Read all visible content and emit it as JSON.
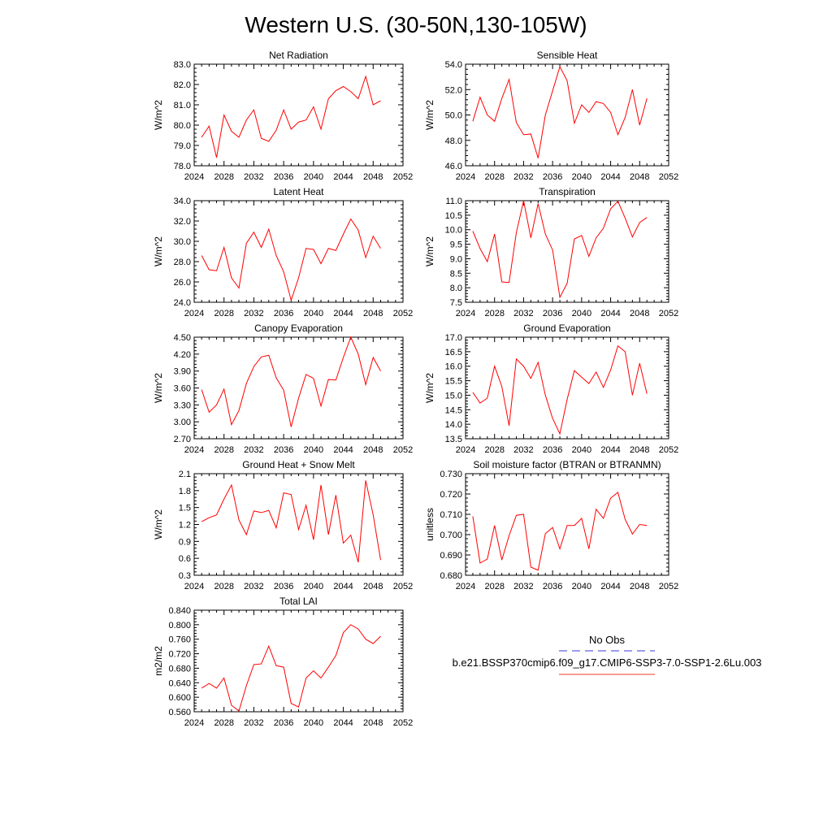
{
  "title": "Western U.S. (30-50N,130-105W)",
  "legend": {
    "items": [
      {
        "label": "No Obs",
        "color": "#3a3ad6",
        "style": "dashed"
      },
      {
        "label": "b.e21.BSSP370cmip6.f09_g17.CMIP6-SSP3-7.0-SSP1-2.6Lu.003",
        "color": "#e8392f",
        "style": "solid"
      }
    ]
  },
  "chart_data": [
    {
      "type": "line",
      "title": "Net Radiation",
      "ylabel": "W/m^2",
      "xlim": [
        2024,
        2052
      ],
      "ylim": [
        78.0,
        83.0
      ],
      "xticks": [
        "2024",
        "2028",
        "2032",
        "2036",
        "2040",
        "2044",
        "2048",
        "2052"
      ],
      "yticks": [
        "78.0",
        "79.0",
        "80.0",
        "81.0",
        "82.0",
        "83.0"
      ],
      "series": [
        {
          "color": "#ff0000",
          "x": [
            2025,
            2026,
            2027,
            2028,
            2029,
            2030,
            2031,
            2032,
            2033,
            2034,
            2035,
            2036,
            2037,
            2038,
            2039,
            2040,
            2041,
            2042,
            2043,
            2044,
            2045,
            2046,
            2047,
            2048,
            2049
          ],
          "values": [
            79.4,
            79.95,
            78.4,
            80.5,
            79.7,
            79.4,
            80.25,
            80.75,
            79.35,
            79.2,
            79.75,
            80.75,
            79.8,
            80.15,
            80.25,
            80.9,
            79.8,
            81.3,
            81.7,
            81.9,
            81.65,
            81.3,
            82.4,
            81.0,
            81.2
          ]
        }
      ]
    },
    {
      "type": "line",
      "title": "Sensible Heat",
      "ylabel": "W/m^2",
      "xlim": [
        2024,
        2052
      ],
      "ylim": [
        46.0,
        54.0
      ],
      "xticks": [
        "2024",
        "2028",
        "2032",
        "2036",
        "2040",
        "2044",
        "2048",
        "2052"
      ],
      "yticks": [
        "46.0",
        "48.0",
        "50.0",
        "52.0",
        "54.0"
      ],
      "series": [
        {
          "color": "#ff0000",
          "x": [
            2025,
            2026,
            2027,
            2028,
            2029,
            2030,
            2031,
            2032,
            2033,
            2034,
            2035,
            2036,
            2037,
            2038,
            2039,
            2040,
            2041,
            2042,
            2043,
            2044,
            2045,
            2046,
            2047,
            2048,
            2049
          ],
          "values": [
            49.5,
            51.4,
            50.0,
            49.5,
            51.3,
            52.8,
            49.4,
            48.45,
            48.5,
            46.6,
            50.0,
            51.9,
            53.8,
            52.7,
            49.35,
            50.8,
            50.2,
            51.05,
            50.9,
            50.2,
            48.45,
            49.8,
            52.0,
            49.2,
            51.3
          ]
        }
      ]
    },
    {
      "type": "line",
      "title": "Latent Heat",
      "ylabel": "W/m^2",
      "xlim": [
        2024,
        2052
      ],
      "ylim": [
        24.0,
        34.0
      ],
      "xticks": [
        "2024",
        "2028",
        "2032",
        "2036",
        "2040",
        "2044",
        "2048",
        "2052"
      ],
      "yticks": [
        "24.0",
        "26.0",
        "28.0",
        "30.0",
        "32.0",
        "34.0"
      ],
      "series": [
        {
          "color": "#ff0000",
          "x": [
            2025,
            2026,
            2027,
            2028,
            2029,
            2030,
            2031,
            2032,
            2033,
            2034,
            2035,
            2036,
            2037,
            2038,
            2039,
            2040,
            2041,
            2042,
            2043,
            2044,
            2045,
            2046,
            2047,
            2048,
            2049
          ],
          "values": [
            28.6,
            27.2,
            27.1,
            29.4,
            26.4,
            25.4,
            29.8,
            30.9,
            29.4,
            31.2,
            28.6,
            27.0,
            24.2,
            26.4,
            29.3,
            29.2,
            27.8,
            29.3,
            29.1,
            30.7,
            32.2,
            31.1,
            28.4,
            30.5,
            29.3
          ]
        }
      ]
    },
    {
      "type": "line",
      "title": "Transpiration",
      "ylabel": "W/m^2",
      "xlim": [
        2024,
        2052
      ],
      "ylim": [
        7.5,
        11.0
      ],
      "xticks": [
        "2024",
        "2028",
        "2032",
        "2036",
        "2040",
        "2044",
        "2048",
        "2052"
      ],
      "yticks": [
        "7.5",
        "8.0",
        "8.5",
        "9.0",
        "9.5",
        "10.0",
        "10.5",
        "11.0"
      ],
      "series": [
        {
          "color": "#ff0000",
          "x": [
            2025,
            2026,
            2027,
            2028,
            2029,
            2030,
            2031,
            2032,
            2033,
            2034,
            2035,
            2036,
            2037,
            2038,
            2039,
            2040,
            2041,
            2042,
            2043,
            2044,
            2045,
            2046,
            2047,
            2048,
            2049
          ],
          "values": [
            9.95,
            9.35,
            8.9,
            9.85,
            8.2,
            8.18,
            9.9,
            11.0,
            9.72,
            10.9,
            9.85,
            9.3,
            7.67,
            8.15,
            9.68,
            9.8,
            9.08,
            9.72,
            10.05,
            10.72,
            10.98,
            10.4,
            9.75,
            10.25,
            10.42
          ]
        }
      ]
    },
    {
      "type": "line",
      "title": "Canopy Evaporation",
      "ylabel": "W/m^2",
      "xlim": [
        2024,
        2052
      ],
      "ylim": [
        2.7,
        4.5
      ],
      "xticks": [
        "2024",
        "2028",
        "2032",
        "2036",
        "2040",
        "2044",
        "2048",
        "2052"
      ],
      "yticks": [
        "2.70",
        "3.00",
        "3.30",
        "3.60",
        "3.90",
        "4.20",
        "4.50"
      ],
      "series": [
        {
          "color": "#ff0000",
          "x": [
            2025,
            2026,
            2027,
            2028,
            2029,
            2030,
            2031,
            2032,
            2033,
            2034,
            2035,
            2036,
            2037,
            2038,
            2039,
            2040,
            2041,
            2042,
            2043,
            2044,
            2045,
            2046,
            2047,
            2048,
            2049
          ],
          "values": [
            3.57,
            3.17,
            3.3,
            3.58,
            2.95,
            3.2,
            3.68,
            3.98,
            4.15,
            4.18,
            3.78,
            3.56,
            2.91,
            3.42,
            3.84,
            3.77,
            3.28,
            3.75,
            3.74,
            4.14,
            4.5,
            4.2,
            3.66,
            4.14,
            3.9
          ]
        }
      ]
    },
    {
      "type": "line",
      "title": "Ground Evaporation",
      "ylabel": "W/m^2",
      "xlim": [
        2024,
        2052
      ],
      "ylim": [
        13.5,
        17.0
      ],
      "xticks": [
        "2024",
        "2028",
        "2032",
        "2036",
        "2040",
        "2044",
        "2048",
        "2052"
      ],
      "yticks": [
        "13.5",
        "14.0",
        "14.5",
        "15.0",
        "15.5",
        "16.0",
        "16.5",
        "17.0"
      ],
      "series": [
        {
          "color": "#ff0000",
          "x": [
            2025,
            2026,
            2027,
            2028,
            2029,
            2030,
            2031,
            2032,
            2033,
            2034,
            2035,
            2036,
            2037,
            2038,
            2039,
            2040,
            2041,
            2042,
            2043,
            2044,
            2045,
            2046,
            2047,
            2048,
            2049
          ],
          "values": [
            15.1,
            14.73,
            14.9,
            16.0,
            15.3,
            13.95,
            16.25,
            16.0,
            15.58,
            16.13,
            15.0,
            14.2,
            13.67,
            14.85,
            15.85,
            15.62,
            15.4,
            15.8,
            15.27,
            15.87,
            16.7,
            16.5,
            15.0,
            16.1,
            15.05
          ]
        }
      ]
    },
    {
      "type": "line",
      "title": "Ground Heat + Snow Melt",
      "ylabel": "W/m^2",
      "xlim": [
        2024,
        2052
      ],
      "ylim": [
        0.3,
        2.1
      ],
      "xticks": [
        "2024",
        "2028",
        "2032",
        "2036",
        "2040",
        "2044",
        "2048",
        "2052"
      ],
      "yticks": [
        "0.3",
        "0.6",
        "0.9",
        "1.2",
        "1.5",
        "1.8",
        "2.1"
      ],
      "series": [
        {
          "color": "#ff0000",
          "x": [
            2025,
            2026,
            2027,
            2028,
            2029,
            2030,
            2031,
            2032,
            2033,
            2034,
            2035,
            2036,
            2037,
            2038,
            2039,
            2040,
            2041,
            2042,
            2043,
            2044,
            2045,
            2046,
            2047,
            2048,
            2049
          ],
          "values": [
            1.25,
            1.32,
            1.37,
            1.65,
            1.9,
            1.28,
            1.02,
            1.44,
            1.41,
            1.45,
            1.14,
            1.76,
            1.73,
            1.11,
            1.54,
            0.93,
            1.9,
            1.02,
            1.72,
            0.87,
            1.01,
            0.53,
            1.98,
            1.37,
            0.57
          ]
        }
      ]
    },
    {
      "type": "line",
      "title": "Soil moisture factor (BTRAN or BTRANMN)",
      "ylabel": "unitless",
      "xlim": [
        2024,
        2052
      ],
      "ylim": [
        0.68,
        0.73
      ],
      "xticks": [
        "2024",
        "2028",
        "2032",
        "2036",
        "2040",
        "2044",
        "2048",
        "2052"
      ],
      "yticks": [
        "0.680",
        "0.690",
        "0.700",
        "0.710",
        "0.720",
        "0.730"
      ],
      "series": [
        {
          "color": "#ff0000",
          "x": [
            2025,
            2026,
            2027,
            2028,
            2029,
            2030,
            2031,
            2032,
            2033,
            2034,
            2035,
            2036,
            2037,
            2038,
            2039,
            2040,
            2041,
            2042,
            2043,
            2044,
            2045,
            2046,
            2047,
            2048,
            2049
          ],
          "values": [
            0.709,
            0.686,
            0.688,
            0.7045,
            0.6875,
            0.6995,
            0.7095,
            0.71,
            0.684,
            0.6825,
            0.7005,
            0.7035,
            0.693,
            0.7045,
            0.7045,
            0.708,
            0.693,
            0.7125,
            0.708,
            0.718,
            0.7208,
            0.7075,
            0.7003,
            0.705,
            0.7045
          ]
        }
      ]
    },
    {
      "type": "line",
      "title": "Total LAI",
      "ylabel": "m2/m2",
      "xlim": [
        2024,
        2052
      ],
      "ylim": [
        0.56,
        0.84
      ],
      "xticks": [
        "2024",
        "2028",
        "2032",
        "2036",
        "2040",
        "2044",
        "2048",
        "2052"
      ],
      "yticks": [
        "0.560",
        "0.600",
        "0.640",
        "0.680",
        "0.720",
        "0.760",
        "0.800",
        "0.840"
      ],
      "series": [
        {
          "color": "#ff0000",
          "x": [
            2025,
            2026,
            2027,
            2028,
            2029,
            2030,
            2031,
            2032,
            2033,
            2034,
            2035,
            2036,
            2037,
            2038,
            2039,
            2040,
            2041,
            2042,
            2043,
            2044,
            2045,
            2046,
            2047,
            2048,
            2049
          ],
          "values": [
            0.625,
            0.638,
            0.625,
            0.653,
            0.578,
            0.562,
            0.632,
            0.69,
            0.692,
            0.741,
            0.687,
            0.683,
            0.583,
            0.573,
            0.653,
            0.673,
            0.653,
            0.683,
            0.715,
            0.778,
            0.8,
            0.788,
            0.76,
            0.748,
            0.768
          ]
        }
      ]
    }
  ]
}
